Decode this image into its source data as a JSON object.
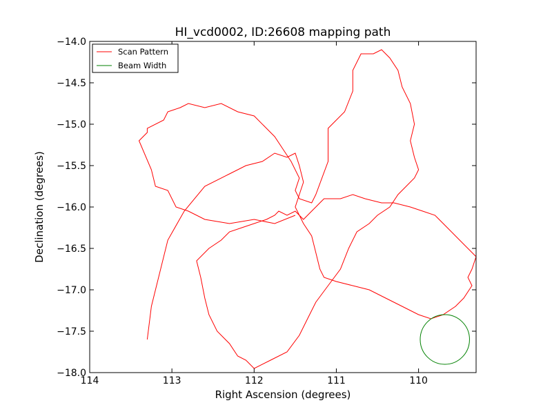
{
  "chart_data": {
    "type": "line",
    "title": "HI_vcd0002, ID:26608 mapping path",
    "xlabel": "Right Ascension (degrees)",
    "ylabel": "Declination (degrees)",
    "xlim": [
      114,
      109.3
    ],
    "ylim": [
      -18.0,
      -14.0
    ],
    "xticks": [
      114,
      113,
      112,
      111,
      110
    ],
    "xtick_labels": [
      "114",
      "113",
      "112",
      "111",
      "110"
    ],
    "yticks": [
      -14.0,
      -14.5,
      -15.0,
      -15.5,
      -16.0,
      -16.5,
      -17.0,
      -17.5,
      -18.0
    ],
    "ytick_labels": [
      "−14.0",
      "−14.5",
      "−15.0",
      "−15.5",
      "−16.0",
      "−16.5",
      "−17.0",
      "−17.5",
      "−18.0"
    ],
    "grid": false,
    "legend_position": "top-left",
    "series": [
      {
        "name": "Scan Pattern",
        "color": "#ff0000",
        "x": [
          111.5,
          111.75,
          112.0,
          112.3,
          112.6,
          112.8,
          112.95,
          113.05,
          113.2,
          113.25,
          113.4,
          113.3,
          113.3,
          113.1,
          113.05,
          112.9,
          112.8,
          112.6,
          112.4,
          112.2,
          112.0,
          111.85,
          111.75,
          111.65,
          111.55,
          111.45,
          111.5,
          111.45,
          111.3,
          111.25,
          111.1,
          111.1,
          110.9,
          110.8,
          110.8,
          110.7,
          110.55,
          110.45,
          110.35,
          110.25,
          110.2,
          110.1,
          110.05,
          110.1,
          110.05,
          110.0,
          110.05,
          110.15,
          110.25,
          110.35,
          110.5,
          110.6,
          110.75,
          110.85,
          110.95,
          111.1,
          111.25,
          111.35,
          111.45,
          111.6,
          111.8,
          112.0,
          112.1,
          112.2,
          112.3,
          112.45,
          112.55,
          112.6,
          112.65,
          112.7,
          112.55,
          112.4,
          112.3,
          112.15,
          112.0,
          111.85,
          111.75,
          111.7,
          111.6,
          111.5,
          111.45,
          111.4,
          111.3,
          111.25,
          111.2,
          111.15,
          111.1,
          110.95,
          110.8,
          110.65,
          110.45,
          110.3,
          110.1,
          109.95,
          109.8,
          109.65,
          109.55,
          109.45,
          109.4,
          109.3,
          109.35,
          109.4,
          109.35,
          109.45,
          109.55,
          109.7,
          109.85,
          110.0,
          110.2,
          110.4,
          110.6,
          110.8,
          111.0,
          111.15,
          111.2,
          111.25,
          111.3,
          111.4,
          111.5,
          111.45,
          111.4,
          111.45,
          111.5,
          111.6,
          111.75,
          111.9,
          112.1,
          112.3,
          112.6,
          112.85,
          113.05,
          113.15,
          113.25,
          113.3
        ],
        "y": [
          -16.1,
          -16.2,
          -16.15,
          -16.2,
          -16.15,
          -16.05,
          -16.0,
          -15.8,
          -15.75,
          -15.55,
          -15.2,
          -15.1,
          -15.05,
          -14.95,
          -14.85,
          -14.8,
          -14.75,
          -14.8,
          -14.75,
          -14.85,
          -14.9,
          -15.05,
          -15.15,
          -15.3,
          -15.45,
          -15.65,
          -15.8,
          -15.9,
          -15.95,
          -15.85,
          -15.45,
          -15.05,
          -14.85,
          -14.6,
          -14.35,
          -14.15,
          -14.15,
          -14.1,
          -14.2,
          -14.35,
          -14.55,
          -14.75,
          -15.0,
          -15.2,
          -15.4,
          -15.55,
          -15.65,
          -15.75,
          -15.85,
          -16.0,
          -16.1,
          -16.2,
          -16.3,
          -16.5,
          -16.75,
          -16.95,
          -17.15,
          -17.35,
          -17.55,
          -17.75,
          -17.85,
          -17.95,
          -17.85,
          -17.8,
          -17.65,
          -17.5,
          -17.3,
          -17.1,
          -16.85,
          -16.65,
          -16.5,
          -16.4,
          -16.3,
          -16.25,
          -16.2,
          -16.15,
          -16.1,
          -16.05,
          -16.1,
          -16.05,
          -16.1,
          -16.15,
          -16.05,
          -16.0,
          -15.95,
          -15.9,
          -15.9,
          -15.9,
          -15.85,
          -15.9,
          -15.95,
          -15.95,
          -16.0,
          -16.05,
          -16.1,
          -16.25,
          -16.35,
          -16.45,
          -16.5,
          -16.6,
          -16.75,
          -16.85,
          -16.95,
          -17.1,
          -17.2,
          -17.3,
          -17.35,
          -17.3,
          -17.2,
          -17.1,
          -17.0,
          -16.95,
          -16.9,
          -16.85,
          -16.75,
          -16.55,
          -16.35,
          -16.2,
          -16.0,
          -15.85,
          -15.7,
          -15.5,
          -15.35,
          -15.4,
          -15.35,
          -15.45,
          -15.5,
          -15.6,
          -15.75,
          -16.05,
          -16.4,
          -16.8,
          -17.2,
          -17.6
        ]
      },
      {
        "name": "Beam Width",
        "color": "#008000",
        "center": [
          109.68,
          -17.6
        ],
        "radius_deg": 0.3
      }
    ]
  }
}
